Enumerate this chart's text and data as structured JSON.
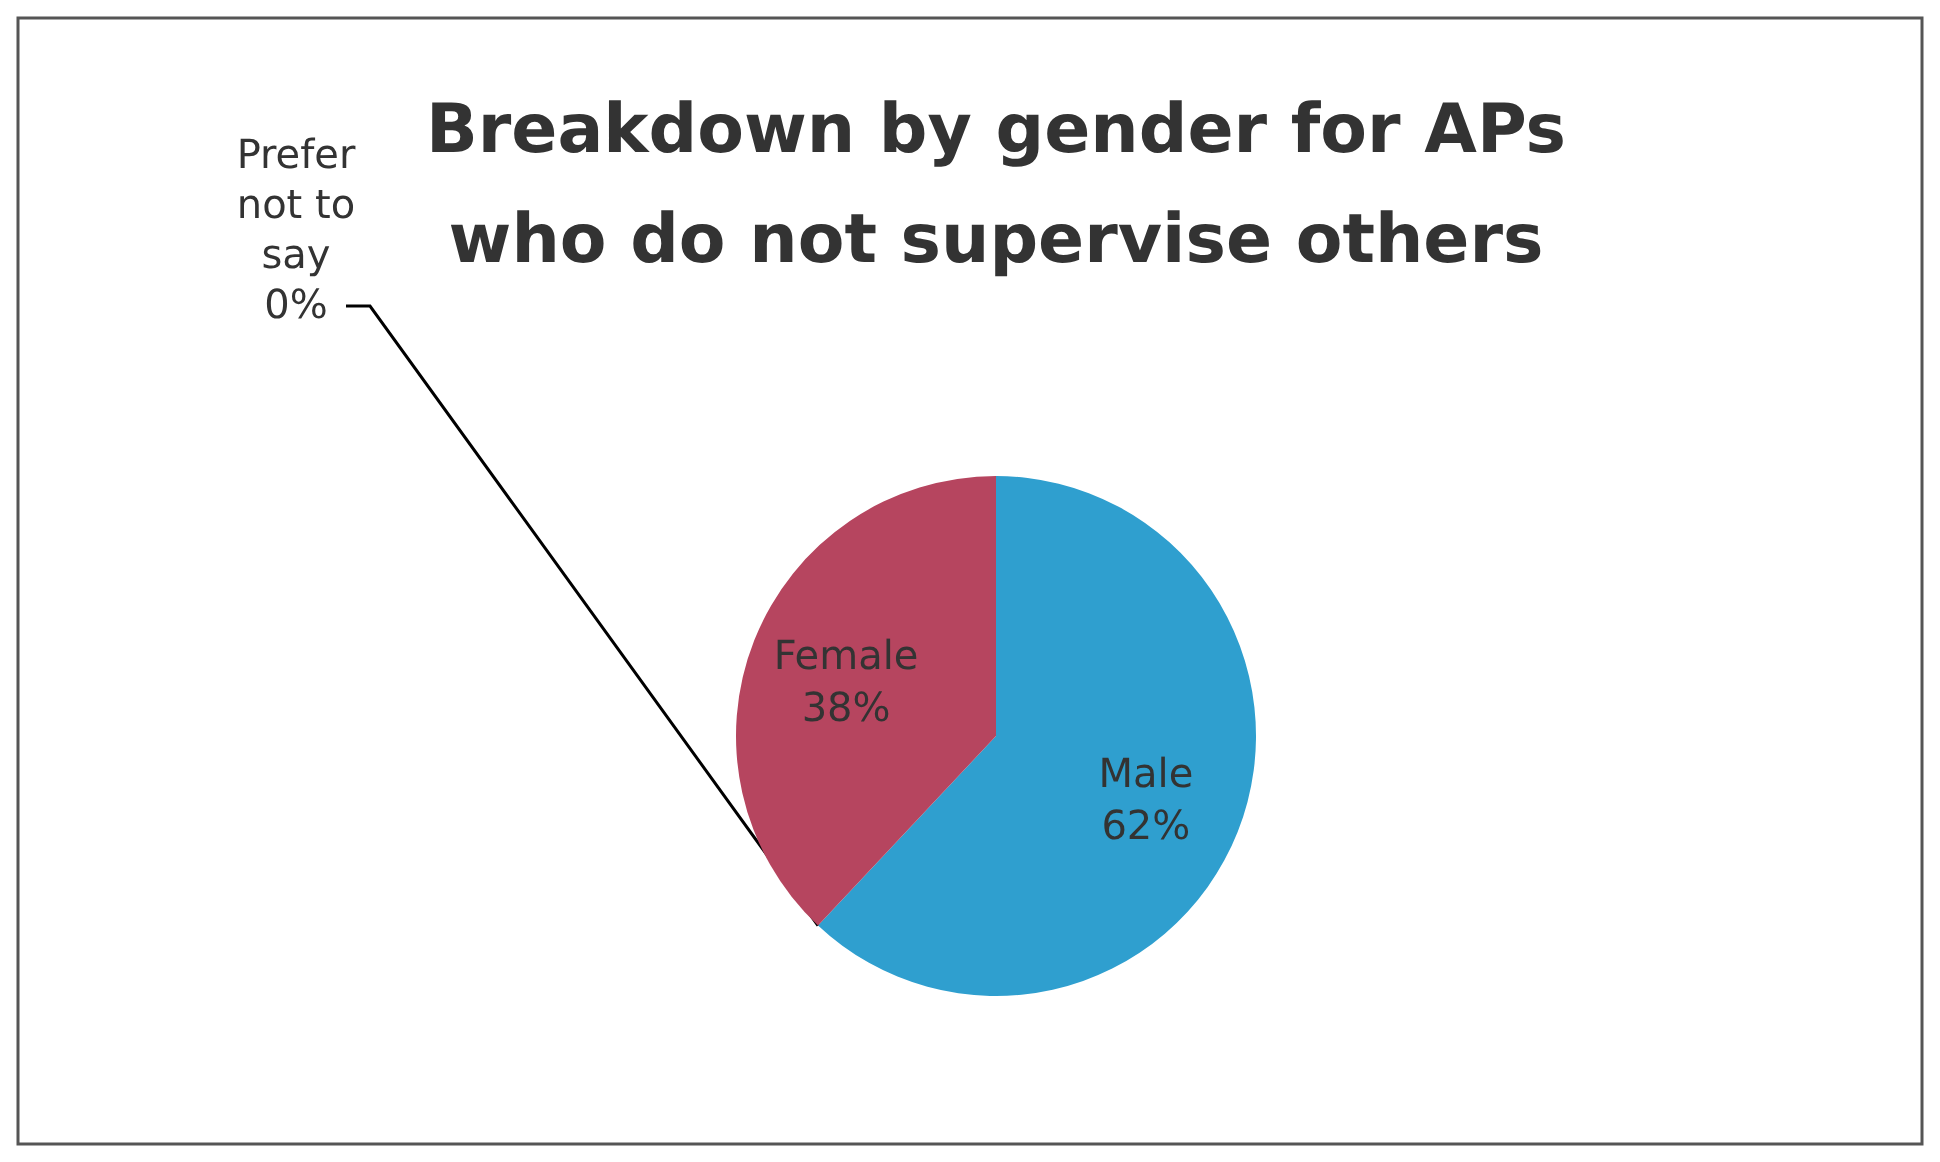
{
  "chart_data": {
    "type": "pie",
    "title": "Breakdown by gender for APs who do not supervise others",
    "categories": [
      "Male",
      "Prefer not to say",
      "Female"
    ],
    "values": [
      62,
      0,
      38
    ],
    "colors": [
      "#2f9fcf",
      "#7f7f7f",
      "#b6455f"
    ],
    "value_labels": [
      "62%",
      "0%",
      "38%"
    ]
  }
}
